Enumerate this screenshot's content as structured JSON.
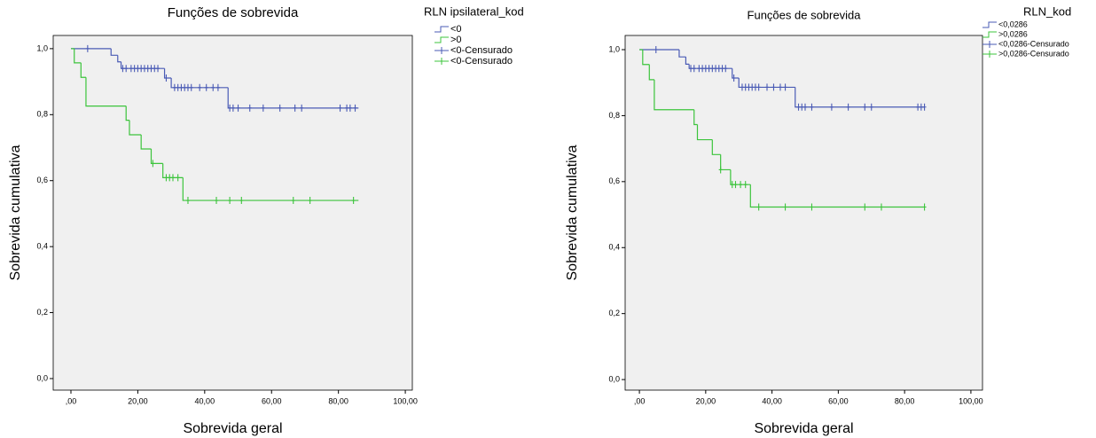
{
  "chart_data": [
    {
      "type": "step",
      "title": "Funções de sobrevida",
      "x_label": "Sobrevida geral",
      "y_label": "Sobrevida cumulativa",
      "legend_title": "RLN ipsilateral_kod",
      "legend": "right",
      "background": "#f0f0f0",
      "xlim": [
        -5.3,
        102.1
      ],
      "ylim": [
        -0.035,
        1.04
      ],
      "xticks": [
        {
          "value": 0,
          "label": ",00"
        },
        {
          "value": 20,
          "label": "20,00"
        },
        {
          "value": 40,
          "label": "40,00"
        },
        {
          "value": 60,
          "label": "60,00"
        },
        {
          "value": 80,
          "label": "80,00"
        },
        {
          "value": 100,
          "label": "100,00"
        }
      ],
      "yticks": [
        {
          "value": 0,
          "label": "0,0"
        },
        {
          "value": 0.2,
          "label": "0,2"
        },
        {
          "value": 0.4,
          "label": "0,4"
        },
        {
          "value": 0.6,
          "label": "0,6"
        },
        {
          "value": 0.8,
          "label": "0,8"
        },
        {
          "value": 1,
          "label": "1,0"
        }
      ],
      "series": [
        {
          "name": "<0",
          "kind": "step",
          "color": "#4a5bb5",
          "x": [
            0,
            12,
            14,
            15,
            28,
            30,
            47,
            86
          ],
          "values": [
            1.0,
            0.98,
            0.96,
            0.94,
            0.911,
            0.882,
            0.82,
            0.82
          ]
        },
        {
          "name": ">0",
          "kind": "step",
          "color": "#3cc43c",
          "x": [
            0,
            1,
            3,
            4.5,
            16.5,
            17.5,
            21,
            24,
            27.5,
            33.5,
            86
          ],
          "values": [
            1.0,
            0.957,
            0.913,
            0.826,
            0.783,
            0.739,
            0.696,
            0.652,
            0.609,
            0.54,
            0.54
          ]
        },
        {
          "name": "<0-Censurado",
          "kind": "censored",
          "color": "#4a5bb5",
          "x": [
            5,
            15.5,
            16.5,
            18,
            19,
            20,
            21,
            22,
            23,
            24,
            25,
            26,
            28.5,
            31,
            32,
            33,
            34,
            35,
            36,
            38.5,
            40.5,
            42.5,
            44,
            47.5,
            48.5,
            50,
            53.5,
            57.5,
            62.5,
            67,
            69,
            80.5,
            82.5,
            83.5,
            85
          ],
          "values": [
            1.0,
            0.94,
            0.94,
            0.94,
            0.94,
            0.94,
            0.94,
            0.94,
            0.94,
            0.94,
            0.94,
            0.94,
            0.911,
            0.882,
            0.882,
            0.882,
            0.882,
            0.882,
            0.882,
            0.882,
            0.882,
            0.882,
            0.882,
            0.82,
            0.82,
            0.82,
            0.82,
            0.82,
            0.82,
            0.82,
            0.82,
            0.82,
            0.82,
            0.82,
            0.82
          ]
        },
        {
          "name": "<0-Censurado",
          "kind": "censored",
          "color": "#3cc43c",
          "x": [
            24.5,
            28.5,
            29.5,
            30.5,
            32,
            35,
            43.5,
            47.5,
            51,
            66.5,
            71.5,
            84.5
          ],
          "values": [
            0.652,
            0.609,
            0.609,
            0.609,
            0.609,
            0.54,
            0.54,
            0.54,
            0.54,
            0.54,
            0.54,
            0.54
          ]
        }
      ]
    },
    {
      "type": "step",
      "title": "Funções de sobrevida",
      "x_label": "Sobrevida geral",
      "y_label": "Sobrevida cumulativa",
      "legend_title": "RLN_kod",
      "legend": "right",
      "background": "#f0f0f0",
      "xlim": [
        -4.3,
        103.5
      ],
      "ylim": [
        -0.032,
        1.043
      ],
      "xticks": [
        {
          "value": 0,
          "label": ",00"
        },
        {
          "value": 20,
          "label": "20,00"
        },
        {
          "value": 40,
          "label": "40,00"
        },
        {
          "value": 60,
          "label": "60,00"
        },
        {
          "value": 80,
          "label": "80,00"
        },
        {
          "value": 100,
          "label": "100,00"
        }
      ],
      "yticks": [
        {
          "value": 0,
          "label": "0,0"
        },
        {
          "value": 0.2,
          "label": "0,2"
        },
        {
          "value": 0.4,
          "label": "0,4"
        },
        {
          "value": 0.6,
          "label": "0,6"
        },
        {
          "value": 0.8,
          "label": "0,8"
        },
        {
          "value": 1,
          "label": "1,0"
        }
      ],
      "series": [
        {
          "name": "<0,0286",
          "kind": "step",
          "color": "#4a5bb5",
          "x": [
            0,
            12,
            14,
            15,
            28,
            30,
            47,
            86
          ],
          "values": [
            1.0,
            0.978,
            0.956,
            0.943,
            0.914,
            0.886,
            0.826,
            0.826
          ]
        },
        {
          "name": ">0,0286",
          "kind": "step",
          "color": "#3cc43c",
          "x": [
            0,
            1,
            3,
            4.5,
            16.5,
            17.5,
            22,
            24.5,
            27.5,
            33.5,
            86
          ],
          "values": [
            1.0,
            0.955,
            0.909,
            0.818,
            0.773,
            0.727,
            0.682,
            0.636,
            0.591,
            0.523,
            0.523
          ]
        },
        {
          "name": "<0,0286-Censurado",
          "kind": "censored",
          "color": "#4a5bb5",
          "x": [
            5,
            15.5,
            16.5,
            18,
            19,
            20,
            21,
            22,
            23,
            24,
            25,
            26,
            28.5,
            31,
            32,
            33,
            34,
            35,
            36,
            38.5,
            40.5,
            42.5,
            44,
            48,
            49,
            50,
            52,
            58,
            63,
            68,
            70,
            84,
            85,
            86
          ],
          "values": [
            1.0,
            0.943,
            0.943,
            0.943,
            0.943,
            0.943,
            0.943,
            0.943,
            0.943,
            0.943,
            0.943,
            0.943,
            0.914,
            0.886,
            0.886,
            0.886,
            0.886,
            0.886,
            0.886,
            0.886,
            0.886,
            0.886,
            0.886,
            0.826,
            0.826,
            0.826,
            0.826,
            0.826,
            0.826,
            0.826,
            0.826,
            0.826,
            0.826,
            0.826
          ]
        },
        {
          "name": ">0,0286-Censurado",
          "kind": "censored",
          "color": "#3cc43c",
          "x": [
            24.5,
            28,
            29,
            30.5,
            32,
            36,
            44,
            52,
            68,
            73,
            86
          ],
          "values": [
            0.636,
            0.591,
            0.591,
            0.591,
            0.591,
            0.523,
            0.523,
            0.523,
            0.523,
            0.523,
            0.523
          ]
        }
      ]
    }
  ]
}
